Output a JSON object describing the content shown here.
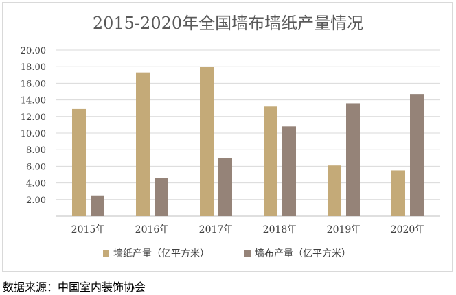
{
  "chart_data": {
    "type": "bar",
    "title": "2015-2020年全国墙布墙纸产量情况",
    "categories": [
      "2015年",
      "2016年",
      "2017年",
      "2018年",
      "2019年",
      "2020年"
    ],
    "series": [
      {
        "name": "墙纸产量（亿平方米）",
        "color": "#c4aa78",
        "values": [
          12.9,
          17.3,
          18.0,
          13.2,
          6.1,
          5.5
        ]
      },
      {
        "name": "墙布产量（亿平方米）",
        "color": "#958378",
        "values": [
          2.5,
          4.6,
          7.0,
          10.8,
          13.6,
          14.7
        ]
      }
    ],
    "ylim": [
      0,
      20
    ],
    "yticks": [
      "-",
      "2.00",
      "4.00",
      "6.00",
      "8.00",
      "10.00",
      "12.00",
      "14.00",
      "16.00",
      "18.00",
      "20.00"
    ],
    "grid": true,
    "legend": "bottom"
  },
  "source_note": "数据来源：中国室内装饰协会"
}
